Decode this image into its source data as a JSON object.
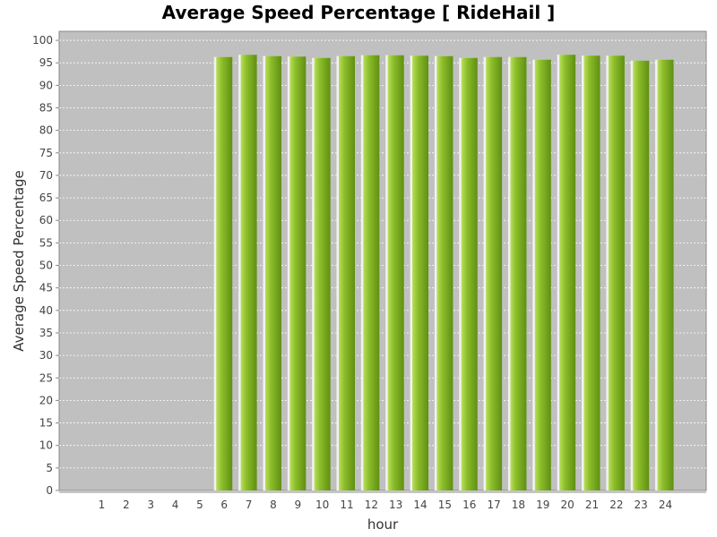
{
  "chart_data": {
    "type": "bar",
    "title": "Average Speed Percentage [ RideHail ]",
    "xlabel": "hour",
    "ylabel": "Average Speed Percentage",
    "categories": [
      "1",
      "2",
      "3",
      "4",
      "5",
      "6",
      "7",
      "8",
      "9",
      "10",
      "11",
      "12",
      "13",
      "14",
      "15",
      "16",
      "17",
      "18",
      "19",
      "20",
      "21",
      "22",
      "23",
      "24"
    ],
    "values": [
      0,
      0,
      0,
      0,
      0,
      96.3,
      96.8,
      96.5,
      96.4,
      96.1,
      96.5,
      96.7,
      96.7,
      96.6,
      96.5,
      96.1,
      96.3,
      96.3,
      95.7,
      96.8,
      96.6,
      96.6,
      95.5,
      95.7
    ],
    "ylim": [
      0,
      102
    ],
    "yticks": [
      0,
      5,
      10,
      15,
      20,
      25,
      30,
      35,
      40,
      45,
      50,
      55,
      60,
      65,
      70,
      75,
      80,
      85,
      90,
      95,
      100
    ],
    "grid": true,
    "legend": "none",
    "colors": {
      "plot_background": "#c0c0c0",
      "bar_light": "#b8e05a",
      "bar_mid": "#8cbd2a",
      "bar_dark": "#5f8f12",
      "grid": "#ffffff"
    }
  }
}
